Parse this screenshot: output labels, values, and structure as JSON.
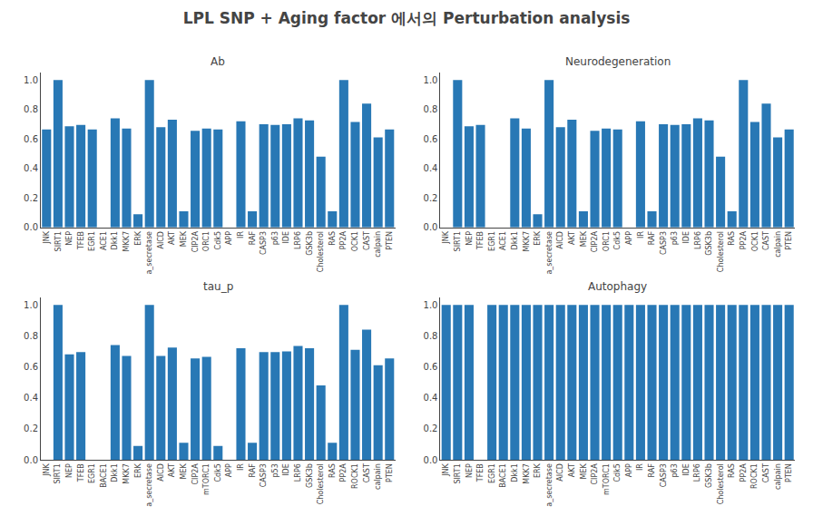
{
  "title": "LPL SNP + Aging factor 에서의 Perturbation analysis",
  "chart_data": [
    {
      "type": "bar",
      "title": "Ab",
      "color": "#2878B5",
      "grid": false,
      "categories": [
        "JNK",
        "SIRT1",
        "NEP",
        "TFEB",
        "EGR1",
        "ACE1",
        "Dkk1",
        "MKK7",
        "ERK",
        "a_secretase",
        "AICD",
        "AKT",
        "MEK",
        "CIP2A",
        "ORC1",
        "Cdk5",
        "APP",
        "IR",
        "RAF",
        "CASP3",
        "p63",
        "IDE",
        "LRP6",
        "GSK3b",
        "Cholesterol",
        "RAS",
        "PP2A",
        "OCK1",
        "CAST",
        "calpain",
        "PTEN"
      ],
      "values": [
        0.665,
        1.0,
        0.685,
        0.695,
        0.665,
        0.0,
        0.74,
        0.67,
        0.09,
        1.0,
        0.68,
        0.73,
        0.11,
        0.655,
        0.67,
        0.665,
        0.0,
        0.72,
        0.11,
        0.7,
        0.695,
        0.7,
        0.74,
        0.725,
        0.48,
        0.11,
        1.0,
        0.715,
        0.84,
        0.61,
        0.665
      ],
      "ylim": [
        0,
        1.05
      ],
      "yticks": [
        {
          "value": 0,
          "label": "0.0"
        },
        0.2,
        0.4,
        0.6,
        0.8,
        {
          "value": 1,
          "label": "1.0"
        }
      ]
    },
    {
      "type": "bar",
      "title": "Neurodegeneration",
      "color": "#2878B5",
      "grid": false,
      "categories": [
        "JNK",
        "SIRT1",
        "NEP",
        "TFEB",
        "EGR1",
        "ACE1",
        "Dkk1",
        "MKK7",
        "ERK",
        "a_secretase",
        "AICD",
        "AKT",
        "MEK",
        "CIP2A",
        "ORC1",
        "Cdk5",
        "APP",
        "IR",
        "RAF",
        "CASP3",
        "p63",
        "IDE",
        "LRP6",
        "GSK3b",
        "Cholesterol",
        "RAS",
        "PP2A",
        "OCK1",
        "CAST",
        "calpain",
        "PTEN"
      ],
      "values": [
        0.0,
        1.0,
        0.685,
        0.695,
        0.0,
        0.0,
        0.74,
        0.67,
        0.09,
        1.0,
        0.68,
        0.73,
        0.11,
        0.655,
        0.67,
        0.665,
        0.0,
        0.72,
        0.11,
        0.7,
        0.695,
        0.7,
        0.74,
        0.725,
        0.48,
        0.11,
        1.0,
        0.715,
        0.84,
        0.61,
        0.665
      ],
      "ylim": [
        0,
        1.05
      ],
      "yticks": [
        {
          "value": 0,
          "label": "0.0"
        },
        0.2,
        0.4,
        0.6,
        0.8,
        {
          "value": 1,
          "label": "1.0"
        }
      ]
    },
    {
      "type": "bar",
      "title": "tau_p",
      "color": "#2878B5",
      "grid": false,
      "categories": [
        "JNK",
        "SIRT1",
        "NEP",
        "TFEB",
        "EGR1",
        "BACE1",
        "Dkk1",
        "MKK7",
        "ERK",
        "a_secretase",
        "AICD",
        "AKT",
        "MEK",
        "CIP2A",
        "mTORC1",
        "Cdk5",
        "APP",
        "IR",
        "RAF",
        "CASP3",
        "p53",
        "IDE",
        "LRP6",
        "GSK3b",
        "Cholesterol",
        "RAS",
        "PP2A",
        "ROCK1",
        "CAST",
        "calpain",
        "PTEN"
      ],
      "values": [
        0.0,
        1.0,
        0.68,
        0.695,
        0.0,
        0.0,
        0.74,
        0.67,
        0.09,
        1.0,
        0.67,
        0.725,
        0.11,
        0.655,
        0.665,
        0.09,
        0.0,
        0.72,
        0.11,
        0.695,
        0.695,
        0.7,
        0.735,
        0.72,
        0.48,
        0.11,
        1.0,
        0.71,
        0.84,
        0.61,
        0.655
      ],
      "ylim": [
        0,
        1.05
      ],
      "yticks": [
        {
          "value": 0,
          "label": "0.0"
        },
        0.2,
        0.4,
        0.6,
        0.8,
        {
          "value": 1,
          "label": "1.0"
        }
      ]
    },
    {
      "type": "bar",
      "title": "Autophagy",
      "color": "#2878B5",
      "grid": false,
      "categories": [
        "JNK",
        "SIRT1",
        "NEP",
        "TFEB",
        "EGR1",
        "BACE1",
        "Dkk1",
        "MKK7",
        "ERK",
        "a_secretase",
        "AICD",
        "AKT",
        "MEK",
        "CIP2A",
        "mTORC1",
        "Cdk5",
        "APP",
        "IR",
        "RAF",
        "CASP3",
        "p63",
        "IDE",
        "LRP6",
        "GSK3b",
        "Cholesterol",
        "RAS",
        "PP2A",
        "ROCK1",
        "CAST",
        "calpain",
        "PTEN"
      ],
      "values": [
        1.0,
        1.0,
        1.0,
        0.0,
        1.0,
        1.0,
        1.0,
        1.0,
        1.0,
        1.0,
        1.0,
        1.0,
        1.0,
        1.0,
        1.0,
        1.0,
        1.0,
        1.0,
        1.0,
        1.0,
        1.0,
        1.0,
        1.0,
        1.0,
        1.0,
        1.0,
        1.0,
        1.0,
        1.0,
        1.0,
        1.0
      ],
      "ylim": [
        0,
        1.05
      ],
      "yticks": [
        {
          "value": 0,
          "label": "0.0"
        },
        0.2,
        0.4,
        0.6,
        0.8,
        {
          "value": 1,
          "label": "1.0"
        }
      ]
    }
  ]
}
